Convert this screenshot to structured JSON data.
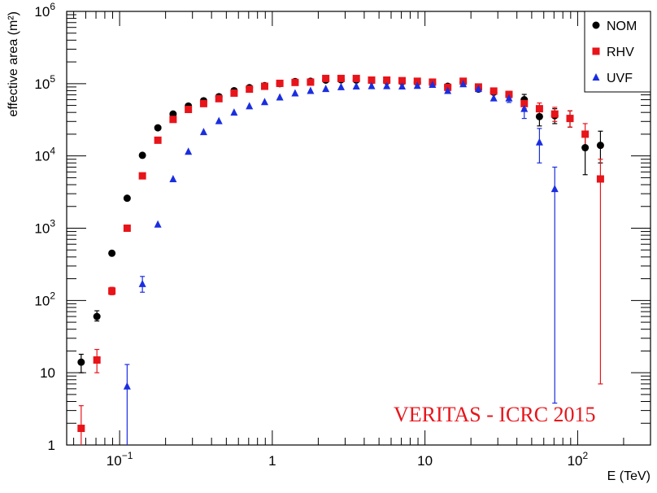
{
  "chart_data": {
    "type": "scatter",
    "title": "",
    "xlabel": "E (TeV)",
    "ylabel": "effective area (m²)",
    "xscale": "log",
    "yscale": "log",
    "xlim": [
      0.045,
      300
    ],
    "ylim": [
      1,
      1000000
    ],
    "grid": false,
    "legend_position": "top-right",
    "x_tick_labels": [
      {
        "value": 0.1,
        "base": "10",
        "exp": "−1"
      },
      {
        "value": 1,
        "base": "1",
        "exp": ""
      },
      {
        "value": 10,
        "base": "10",
        "exp": ""
      },
      {
        "value": 100,
        "base": "10",
        "exp": "2"
      }
    ],
    "y_tick_labels": [
      {
        "value": 1,
        "base": "1",
        "exp": ""
      },
      {
        "value": 10,
        "base": "10",
        "exp": ""
      },
      {
        "value": 100,
        "base": "10",
        "exp": "2"
      },
      {
        "value": 1000,
        "base": "10",
        "exp": "3"
      },
      {
        "value": 10000,
        "base": "10",
        "exp": "4"
      },
      {
        "value": 100000,
        "base": "10",
        "exp": "5"
      },
      {
        "value": 1000000,
        "base": "10",
        "exp": "6"
      }
    ],
    "series": [
      {
        "name": "NOM",
        "marker": "circle",
        "color": "#000000",
        "points": [
          {
            "x": 0.056,
            "y": 14,
            "lo": 10,
            "hi": 18
          },
          {
            "x": 0.071,
            "y": 60,
            "lo": 52,
            "hi": 72
          },
          {
            "x": 0.089,
            "y": 450,
            "lo": 420,
            "hi": 480
          },
          {
            "x": 0.112,
            "y": 2600
          },
          {
            "x": 0.141,
            "y": 10200
          },
          {
            "x": 0.178,
            "y": 24500
          },
          {
            "x": 0.224,
            "y": 38000
          },
          {
            "x": 0.282,
            "y": 49000
          },
          {
            "x": 0.355,
            "y": 58000
          },
          {
            "x": 0.447,
            "y": 66000
          },
          {
            "x": 0.562,
            "y": 80000
          },
          {
            "x": 0.708,
            "y": 88000
          },
          {
            "x": 0.891,
            "y": 94000
          },
          {
            "x": 1.12,
            "y": 100000
          },
          {
            "x": 1.41,
            "y": 107000
          },
          {
            "x": 1.78,
            "y": 108000
          },
          {
            "x": 2.24,
            "y": 112000
          },
          {
            "x": 2.82,
            "y": 113000
          },
          {
            "x": 3.55,
            "y": 112000
          },
          {
            "x": 4.47,
            "y": 110000
          },
          {
            "x": 5.62,
            "y": 108000
          },
          {
            "x": 7.08,
            "y": 106000
          },
          {
            "x": 8.91,
            "y": 104000
          },
          {
            "x": 11.2,
            "y": 101000
          },
          {
            "x": 14.1,
            "y": 92000
          },
          {
            "x": 17.8,
            "y": 105000
          },
          {
            "x": 22.4,
            "y": 84000
          },
          {
            "x": 28.2,
            "y": 76000
          },
          {
            "x": 35.5,
            "y": 69000,
            "lo": 60000,
            "hi": 78000
          },
          {
            "x": 44.7,
            "y": 60000,
            "lo": 50000,
            "hi": 71000
          },
          {
            "x": 56.2,
            "y": 35000,
            "lo": 26000,
            "hi": 45000
          },
          {
            "x": 70.8,
            "y": 36000,
            "lo": 28000,
            "hi": 45000
          },
          {
            "x": 89.1,
            "y": 33000,
            "lo": 25000,
            "hi": 42000
          },
          {
            "x": 112,
            "y": 13000,
            "lo": 5500,
            "hi": 21000
          },
          {
            "x": 141,
            "y": 14000,
            "lo": 8000,
            "hi": 22000
          }
        ]
      },
      {
        "name": "RHV",
        "marker": "square",
        "color": "#e8141a",
        "points": [
          {
            "x": 0.056,
            "y": 1.7,
            "lo": 0.7,
            "hi": 3.5
          },
          {
            "x": 0.071,
            "y": 15,
            "lo": 10,
            "hi": 21
          },
          {
            "x": 0.089,
            "y": 135,
            "lo": 120,
            "hi": 152
          },
          {
            "x": 0.112,
            "y": 1000
          },
          {
            "x": 0.141,
            "y": 5300
          },
          {
            "x": 0.178,
            "y": 16500
          },
          {
            "x": 0.224,
            "y": 32000
          },
          {
            "x": 0.282,
            "y": 44000
          },
          {
            "x": 0.355,
            "y": 53000
          },
          {
            "x": 0.447,
            "y": 62000
          },
          {
            "x": 0.562,
            "y": 74000
          },
          {
            "x": 0.708,
            "y": 84000
          },
          {
            "x": 0.891,
            "y": 92000
          },
          {
            "x": 1.12,
            "y": 101000
          },
          {
            "x": 1.41,
            "y": 104000
          },
          {
            "x": 1.78,
            "y": 105000
          },
          {
            "x": 2.24,
            "y": 118000
          },
          {
            "x": 2.82,
            "y": 118000
          },
          {
            "x": 3.55,
            "y": 118000
          },
          {
            "x": 4.47,
            "y": 112000
          },
          {
            "x": 5.62,
            "y": 112000
          },
          {
            "x": 7.08,
            "y": 110000
          },
          {
            "x": 8.91,
            "y": 108000
          },
          {
            "x": 11.2,
            "y": 105000
          },
          {
            "x": 14.1,
            "y": 89000
          },
          {
            "x": 17.8,
            "y": 108000
          },
          {
            "x": 22.4,
            "y": 90000
          },
          {
            "x": 28.2,
            "y": 79000
          },
          {
            "x": 35.5,
            "y": 71000
          },
          {
            "x": 44.7,
            "y": 53000,
            "lo": 45000,
            "hi": 62000
          },
          {
            "x": 56.2,
            "y": 45000,
            "lo": 37000,
            "hi": 54000
          },
          {
            "x": 70.8,
            "y": 38000,
            "lo": 30000,
            "hi": 47000
          },
          {
            "x": 89.1,
            "y": 33000,
            "lo": 25000,
            "hi": 42000
          },
          {
            "x": 112,
            "y": 20000,
            "lo": 12000,
            "hi": 28000
          },
          {
            "x": 141,
            "y": 4800,
            "lo": 7,
            "hi": 9000
          }
        ]
      },
      {
        "name": "UVF",
        "marker": "triangle",
        "color": "#1a2ee0",
        "points": [
          {
            "x": 0.112,
            "y": 6.5,
            "lo": 1,
            "hi": 13
          },
          {
            "x": 0.141,
            "y": 170,
            "lo": 130,
            "hi": 215
          },
          {
            "x": 0.178,
            "y": 1130
          },
          {
            "x": 0.224,
            "y": 4800
          },
          {
            "x": 0.282,
            "y": 11500
          },
          {
            "x": 0.355,
            "y": 21500
          },
          {
            "x": 0.447,
            "y": 30500
          },
          {
            "x": 0.562,
            "y": 40000
          },
          {
            "x": 0.708,
            "y": 49000
          },
          {
            "x": 0.891,
            "y": 56000
          },
          {
            "x": 1.12,
            "y": 65000
          },
          {
            "x": 1.41,
            "y": 74000
          },
          {
            "x": 1.78,
            "y": 80000
          },
          {
            "x": 2.24,
            "y": 85000
          },
          {
            "x": 2.82,
            "y": 90000
          },
          {
            "x": 3.55,
            "y": 92000
          },
          {
            "x": 4.47,
            "y": 93000
          },
          {
            "x": 5.62,
            "y": 93000
          },
          {
            "x": 7.08,
            "y": 92000
          },
          {
            "x": 8.91,
            "y": 94000
          },
          {
            "x": 11.2,
            "y": 97000
          },
          {
            "x": 14.1,
            "y": 80000
          },
          {
            "x": 17.8,
            "y": 99000
          },
          {
            "x": 22.4,
            "y": 85000
          },
          {
            "x": 28.2,
            "y": 63000
          },
          {
            "x": 35.5,
            "y": 63000,
            "lo": 55000,
            "hi": 72000
          },
          {
            "x": 44.7,
            "y": 45000,
            "lo": 33000,
            "hi": 56000
          },
          {
            "x": 56.2,
            "y": 15500,
            "lo": 8000,
            "hi": 24000
          },
          {
            "x": 70.8,
            "y": 3500,
            "lo": 3.8,
            "hi": 7000
          }
        ]
      }
    ],
    "annotation": {
      "text": "VERITAS - ICRC 2015",
      "color": "#e8141a"
    }
  }
}
